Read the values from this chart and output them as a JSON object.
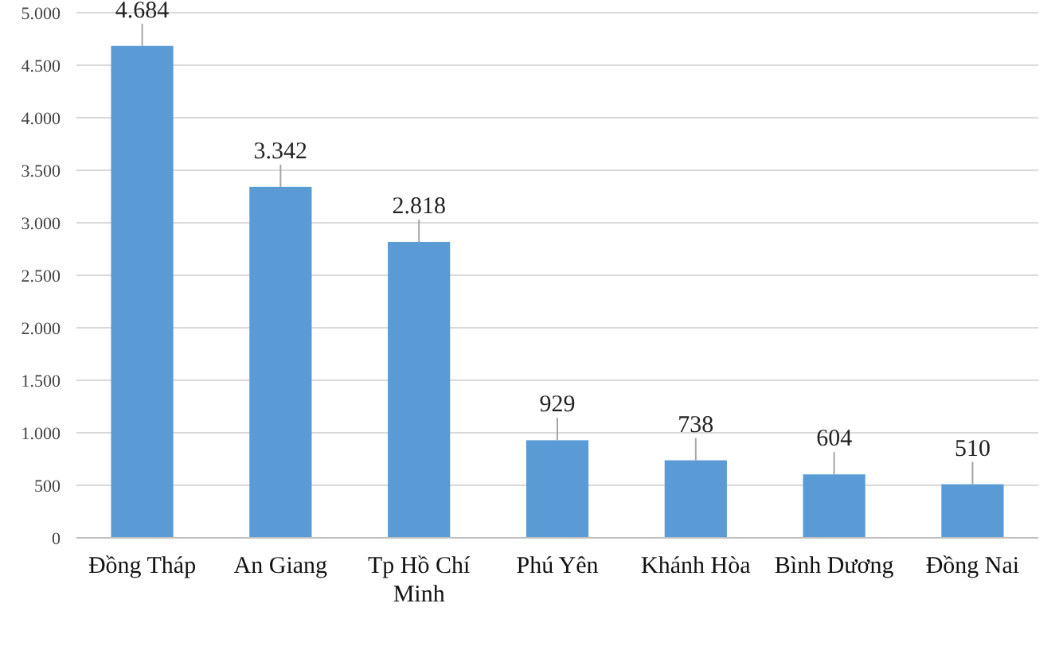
{
  "chart_data": {
    "type": "bar",
    "categories": [
      "Đồng Tháp",
      "An Giang",
      "Tp Hồ Chí Minh",
      "Phú Yên",
      "Khánh Hòa",
      "Bình Dương",
      "Đồng Nai"
    ],
    "values": [
      4684,
      3342,
      2818,
      929,
      738,
      604,
      510
    ],
    "color": "#5b9bd5",
    "value_labels": [
      "4.684",
      "3.342",
      "2.818",
      "929",
      "738",
      "604",
      "510"
    ],
    "ylim": [
      0,
      5000
    ],
    "yticks": [
      0,
      500,
      {
        "value": 1000,
        "label": "1.000"
      },
      {
        "value": 1500,
        "label": "1.500"
      },
      {
        "value": 2000,
        "label": "2.000"
      },
      {
        "value": 2500,
        "label": "2.500"
      },
      {
        "value": 3000,
        "label": "3.000"
      },
      {
        "value": 3500,
        "label": "3.500"
      },
      {
        "value": 4000,
        "label": "4.000"
      },
      {
        "value": 4500,
        "label": "4.500"
      },
      {
        "value": 5000,
        "label": "5.000"
      }
    ],
    "grid": "y"
  }
}
